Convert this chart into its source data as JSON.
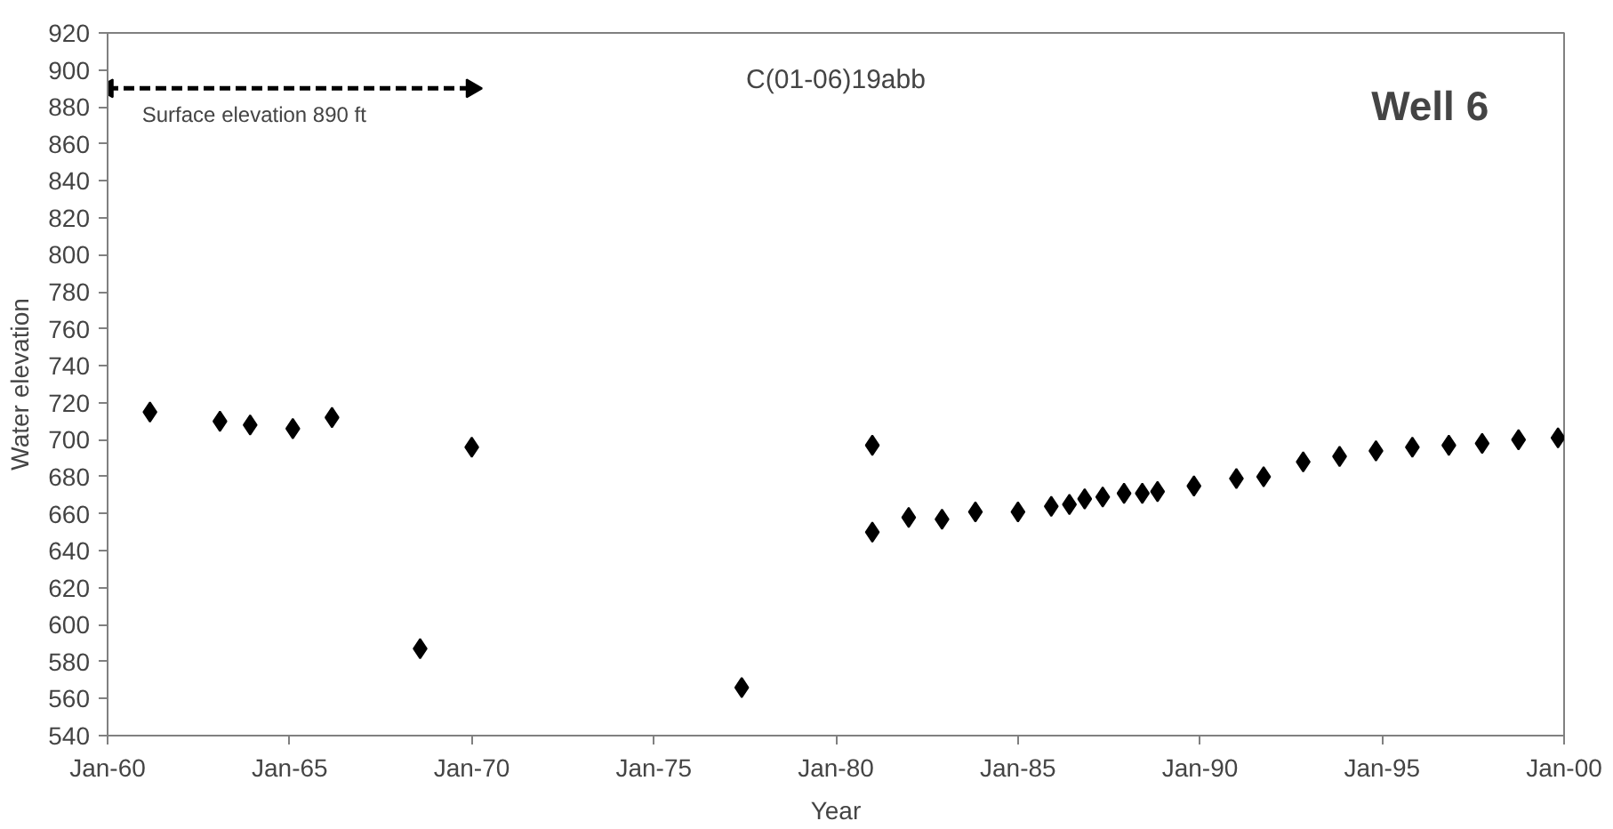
{
  "chart_data": {
    "type": "scatter",
    "title": "C(01-06)19abb",
    "subtitle": "Well  6",
    "xlabel": "Year",
    "ylabel": "Water elevation",
    "x": [
      "1961-03",
      "1963-02",
      "1963-12",
      "1965-02",
      "1966-03",
      "1968-08",
      "1970-01",
      "1977-06",
      "1981-01",
      "1981-01",
      "1982-01",
      "1982-12",
      "1983-11",
      "1985-01",
      "1985-12",
      "1986-06",
      "1986-11",
      "1987-05",
      "1987-12",
      "1988-06",
      "1988-11",
      "1989-11",
      "1991-01",
      "1991-10",
      "1992-11",
      "1993-11",
      "1994-11",
      "1995-11",
      "1996-11",
      "1997-10",
      "1998-10",
      "1999-11"
    ],
    "series": [
      {
        "color": "#000000",
        "values": [
          715,
          710,
          708,
          706,
          712,
          587,
          696,
          566,
          697,
          650,
          658,
          657,
          661,
          661,
          664,
          665,
          668,
          669,
          671,
          671,
          672,
          675,
          679,
          680,
          688,
          691,
          694,
          696,
          697,
          698,
          700,
          701
        ]
      },
      {
        "type": "line",
        "color": "#000000",
        "line_style": "dashed",
        "marker": "triangle",
        "x": [
          "1960-01",
          "1970-01"
        ],
        "values": [
          890,
          890
        ]
      }
    ],
    "annotations": [
      {
        "text": "Surface elevation 890 ft",
        "x": "1965-01",
        "y": 890
      }
    ],
    "marker": "diamond",
    "grid": false,
    "xlim": [
      "1960-01",
      "2000-01"
    ],
    "xticks": [
      {
        "value": "1960-01",
        "label": "Jan-60"
      },
      {
        "value": "1965-01",
        "label": "Jan-65"
      },
      {
        "value": "1970-01",
        "label": "Jan-70"
      },
      {
        "value": "1975-01",
        "label": "Jan-75"
      },
      {
        "value": "1980-01",
        "label": "Jan-80"
      },
      {
        "value": "1985-01",
        "label": "Jan-85"
      },
      {
        "value": "1990-01",
        "label": "Jan-90"
      },
      {
        "value": "1995-01",
        "label": "Jan-95"
      },
      {
        "value": "2000-01",
        "label": "Jan-00"
      }
    ],
    "ylim": [
      540,
      920
    ],
    "yticks": [
      540,
      560,
      580,
      600,
      620,
      640,
      660,
      680,
      700,
      720,
      740,
      760,
      780,
      800,
      820,
      840,
      860,
      880,
      900,
      920
    ]
  }
}
